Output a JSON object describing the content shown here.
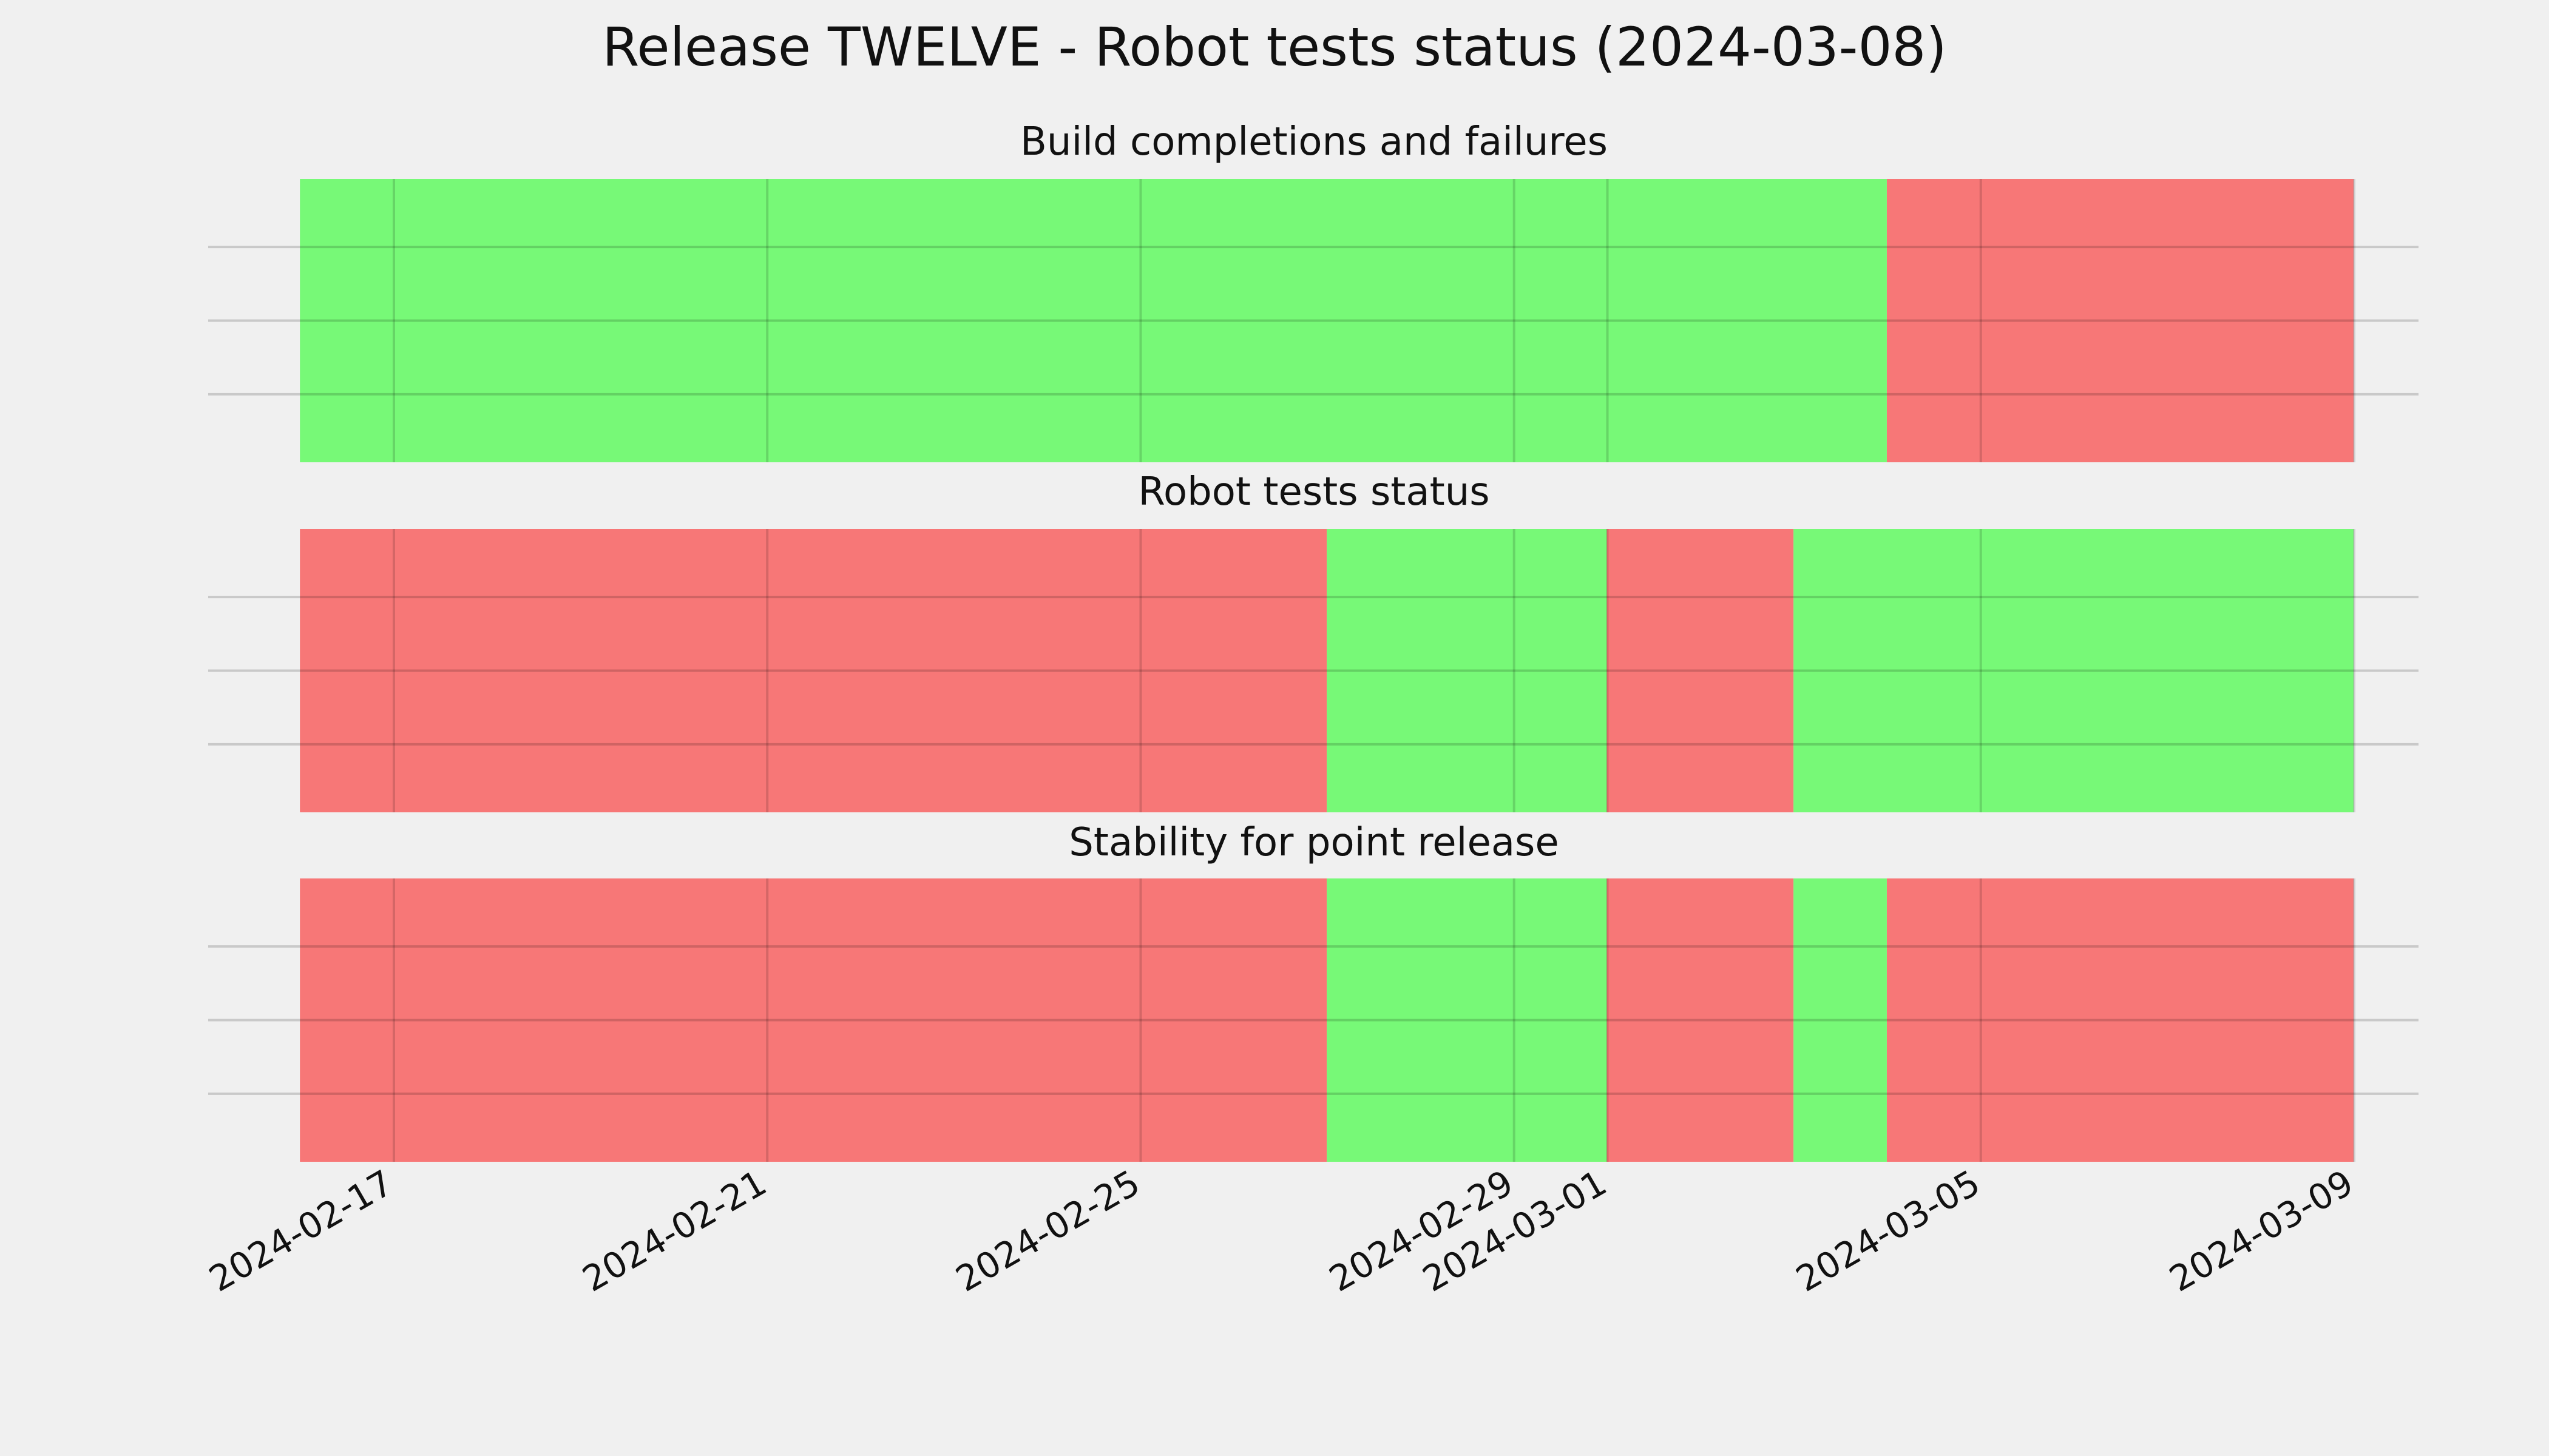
{
  "colors": {
    "background": "#f0f0f0",
    "pass": "#77f977",
    "fail": "#f77777",
    "grid": "#c8c8c8",
    "text": "#111111"
  },
  "chart_data": {
    "type": "timeline",
    "title": "Release TWELVE - Robot tests status (2024-03-08)",
    "x_range": [
      "2024-02-16",
      "2024-03-09"
    ],
    "grid": true,
    "x_tick_labels": [
      "2024-02-17",
      "2024-02-21",
      "2024-02-25",
      "2024-02-29",
      "2024-03-01",
      "2024-03-05",
      "2024-03-09"
    ],
    "panels": [
      {
        "title": "Build completions and failures",
        "segments": [
          {
            "start": "2024-02-16",
            "end": "2024-03-04",
            "status": "pass"
          },
          {
            "start": "2024-03-04",
            "end": "2024-03-09",
            "status": "fail"
          }
        ]
      },
      {
        "title": "Robot tests status",
        "segments": [
          {
            "start": "2024-02-16",
            "end": "2024-02-27",
            "status": "fail"
          },
          {
            "start": "2024-02-27",
            "end": "2024-03-01",
            "status": "pass"
          },
          {
            "start": "2024-03-01",
            "end": "2024-03-03",
            "status": "fail"
          },
          {
            "start": "2024-03-03",
            "end": "2024-03-09",
            "status": "pass"
          }
        ]
      },
      {
        "title": "Stability for point release",
        "segments": [
          {
            "start": "2024-02-16",
            "end": "2024-02-27",
            "status": "fail"
          },
          {
            "start": "2024-02-27",
            "end": "2024-03-01",
            "status": "pass"
          },
          {
            "start": "2024-03-01",
            "end": "2024-03-03",
            "status": "fail"
          },
          {
            "start": "2024-03-03",
            "end": "2024-03-04",
            "status": "pass"
          },
          {
            "start": "2024-03-04",
            "end": "2024-03-09",
            "status": "fail"
          }
        ]
      }
    ]
  }
}
